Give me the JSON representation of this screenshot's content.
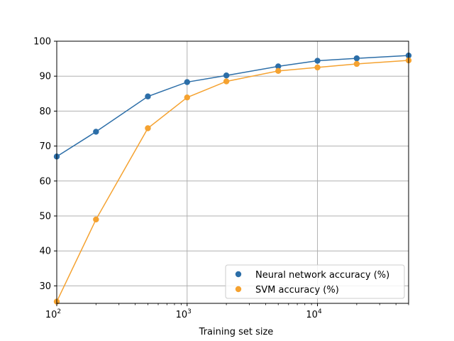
{
  "chart_data": {
    "type": "line",
    "xlabel": "Training set size",
    "ylabel": "",
    "title": "",
    "x_scale": "log",
    "xlim": [
      100,
      50000
    ],
    "ylim": [
      25,
      100
    ],
    "grid": true,
    "legend_position": "lower-right",
    "x": [
      100,
      200,
      500,
      1000,
      2000,
      5000,
      10000,
      20000,
      50000
    ],
    "x_ticks": [
      {
        "value": 100,
        "base": "10",
        "exp": "2"
      },
      {
        "value": 1000,
        "base": "10",
        "exp": "3"
      },
      {
        "value": 10000,
        "base": "10",
        "exp": "4"
      }
    ],
    "y_ticks": [
      30,
      40,
      50,
      60,
      70,
      80,
      90,
      100
    ],
    "series": [
      {
        "name": "Neural network accuracy (%)",
        "color": "#2c6ea8",
        "values": [
          67.0,
          74.1,
          84.2,
          88.3,
          90.2,
          92.8,
          94.4,
          95.1,
          95.9
        ]
      },
      {
        "name": "SVM accuracy (%)",
        "color": "#f5a230",
        "values": [
          25.5,
          49.0,
          75.1,
          83.9,
          88.5,
          91.5,
          92.5,
          93.5,
          94.5
        ]
      }
    ]
  }
}
